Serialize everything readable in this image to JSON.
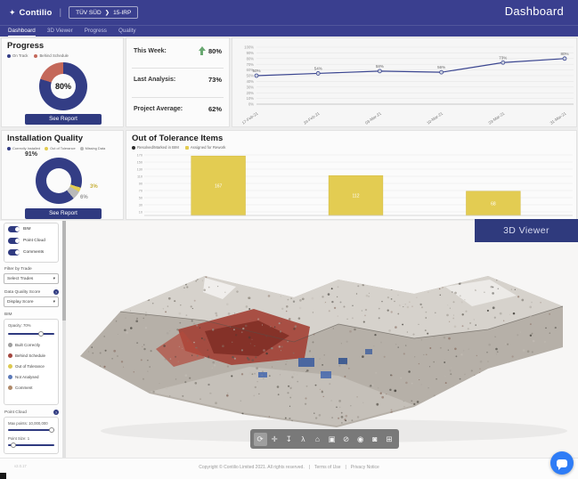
{
  "header": {
    "brand": "Contilio",
    "breadcrumb_group": "TÜV SÜD",
    "breadcrumb_sep": "❯",
    "breadcrumb_project": "15-IRP",
    "page_title": "Dashboard"
  },
  "icons": {
    "logo": "✦",
    "chevron_down": "▾",
    "help": "?"
  },
  "nav": {
    "tabs": [
      {
        "label": "Dashboard",
        "active": true
      },
      {
        "label": "3D Viewer",
        "active": false
      },
      {
        "label": "Progress",
        "active": false
      },
      {
        "label": "Quality",
        "active": false
      }
    ]
  },
  "progress": {
    "title": "Progress",
    "legend": [
      {
        "label": "On Track",
        "color": "#333d85"
      },
      {
        "label": "Behind Schedule",
        "color": "#c4685a"
      }
    ],
    "center_label": "80%",
    "see_report": "See Report"
  },
  "stats": {
    "rows": [
      {
        "label": "This Week:",
        "value": "80%",
        "trend": "up"
      },
      {
        "label": "Last Analysis:",
        "value": "73%",
        "trend": ""
      },
      {
        "label": "Project Average:",
        "value": "62%",
        "trend": ""
      }
    ]
  },
  "installation_quality": {
    "title": "Installation Quality",
    "legend": [
      {
        "label": "Correctly Installed",
        "color": "#333d85"
      },
      {
        "label": "Out of Tolerance",
        "color": "#e3cc52"
      },
      {
        "label": "Missing Data",
        "color": "#b9b9b9"
      }
    ],
    "labels": {
      "main": "91%",
      "tolerance": "3%",
      "missing": "6%"
    },
    "see_report": "See Report"
  },
  "out_of_tolerance": {
    "title": "Out of Tolerance Items",
    "legend": [
      {
        "label": "Resolved/Marked in BIM",
        "color": "#2b2b2b"
      },
      {
        "label": "Assigned for Rework",
        "color": "#e3cc52"
      }
    ]
  },
  "viewer": {
    "banner": "3D Viewer",
    "toggles": [
      {
        "label": "BIM",
        "on": true
      },
      {
        "label": "Point Cloud",
        "on": true
      },
      {
        "label": "Comments",
        "on": true
      }
    ],
    "filter_by_trade": {
      "label": "Filter by Trade",
      "value": "Select Trades"
    },
    "data_quality": {
      "label": "Data Quality Score",
      "value": "Display Score"
    },
    "bim_panel": {
      "label": "BIM",
      "opacity_label": "Opacity: 70%",
      "opacity_pct": 72,
      "legend": [
        {
          "label": "Built Correctly",
          "color": "#9e9e9e"
        },
        {
          "label": "Behind Schedule",
          "color": "#a4473f"
        },
        {
          "label": "Out of Tolerance",
          "color": "#ddc94f"
        },
        {
          "label": "Not Analysed",
          "color": "#5b79b8"
        },
        {
          "label": "Comment",
          "color": "#b08a6a"
        }
      ]
    },
    "point_cloud_panel": {
      "label": "Point Cloud",
      "max_points_label": "Max points: 10,000,000",
      "max_points_pct": 95,
      "point_size_label": "Point Size: 1",
      "point_size_pct": 12
    },
    "toolbar": [
      {
        "name": "orbit",
        "glyph": "⟳",
        "active": true
      },
      {
        "name": "pan",
        "glyph": "✛",
        "active": false
      },
      {
        "name": "drop",
        "glyph": "↧",
        "active": false
      },
      {
        "name": "walk",
        "glyph": "λ",
        "active": false
      },
      {
        "name": "home",
        "glyph": "⌂",
        "active": false
      },
      {
        "name": "fit-view",
        "glyph": "▣",
        "active": false
      },
      {
        "name": "hide",
        "glyph": "⊘",
        "active": false
      },
      {
        "name": "visibility",
        "glyph": "◉",
        "active": false
      },
      {
        "name": "camera",
        "glyph": "◙",
        "active": false
      },
      {
        "name": "fullscreen",
        "glyph": "⊞",
        "active": false
      }
    ]
  },
  "footer": {
    "version": "v2.0.17",
    "copyright": "Copyright © Contilio Limited 2021. All rights reserved.",
    "sep": "|",
    "links": [
      "Terms of Use",
      "Privacy Notice"
    ]
  },
  "chart_data": [
    {
      "id": "progress_trend",
      "type": "line",
      "title": "",
      "x": [
        "17-Feb-21",
        "24-Feb-21",
        "03-Mar-21",
        "10-Mar-21",
        "23-Mar-21",
        "31-Mar-21"
      ],
      "values": [
        50,
        54,
        58,
        56,
        73,
        80
      ],
      "point_labels": [
        "50%",
        "54%",
        "58%",
        "56%",
        "73%",
        "80%"
      ],
      "y_ticks": [
        0,
        10,
        20,
        30,
        40,
        50,
        60,
        70,
        80,
        90,
        100
      ],
      "ylim": [
        0,
        100
      ],
      "line_color": "#3a4590",
      "marker_fill": "#cdd3df",
      "grid": true,
      "legend_position": "none"
    },
    {
      "id": "out_of_tolerance",
      "type": "bar",
      "title": "Out of Tolerance Items",
      "categories": [
        "",
        "",
        ""
      ],
      "values": [
        167,
        112,
        68
      ],
      "labels": [
        "167",
        "112",
        "68"
      ],
      "y_ticks": [
        10,
        30,
        50,
        70,
        90,
        110,
        130,
        150,
        170
      ],
      "ylim": [
        0,
        175
      ],
      "bar_color": "#e3cc52",
      "bar_border": "#d2ba41",
      "centers": [
        0.175,
        0.5,
        0.825
      ],
      "bar_w": 0.128
    },
    {
      "id": "progress_donut",
      "type": "pie",
      "center_label": "80%",
      "segments": [
        {
          "label": "On Track",
          "value": 80,
          "color": "#333d85"
        },
        {
          "label": "Behind Schedule",
          "value": 20,
          "color": "#c4685a"
        }
      ]
    },
    {
      "id": "quality_donut",
      "type": "pie",
      "segments": [
        {
          "label": "Correctly Installed",
          "value": 91,
          "color": "#333d85"
        },
        {
          "label": "Out of Tolerance",
          "value": 3,
          "color": "#e3cc52"
        },
        {
          "label": "Missing Data",
          "value": 6,
          "color": "#b9b9b9"
        }
      ]
    }
  ]
}
